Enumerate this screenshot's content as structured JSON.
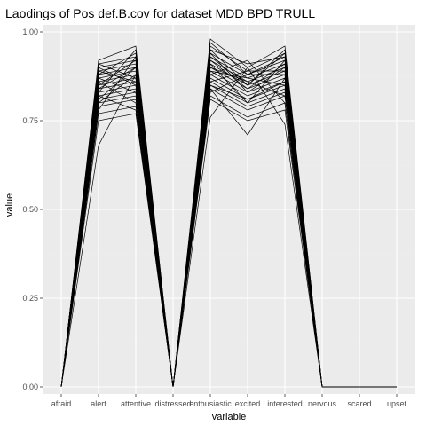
{
  "chart_data": {
    "type": "line",
    "title": "Laodings of Pos def.B.cov for dataset MDD BPD TRULL",
    "xlabel": "variable",
    "ylabel": "value",
    "categories": [
      "afraid",
      "alert",
      "attentive",
      "distressed",
      "enthusiastic",
      "excited",
      "interested",
      "nervous",
      "scared",
      "upset"
    ],
    "ylim": [
      -0.02,
      1.02
    ],
    "yticks": [
      0.0,
      0.25,
      0.5,
      0.75,
      1.0
    ],
    "ytick_labels": [
      "0.00",
      "0.25",
      "0.50",
      "0.75",
      "1.00"
    ],
    "grid": true,
    "legend": "none",
    "colors": {
      "panel": "#ebebeb",
      "grid": "#ffffff",
      "line": "#000000"
    },
    "series": [
      {
        "values": [
          0,
          0.92,
          0.96,
          0,
          0.98,
          0.9,
          0.96,
          0,
          0,
          0
        ]
      },
      {
        "values": [
          0,
          0.91,
          0.93,
          0,
          0.96,
          0.89,
          0.94,
          0,
          0,
          0
        ]
      },
      {
        "values": [
          0,
          0.9,
          0.92,
          0,
          0.95,
          0.91,
          0.93,
          0,
          0,
          0
        ]
      },
      {
        "values": [
          0,
          0.89,
          0.91,
          0,
          0.94,
          0.88,
          0.92,
          0,
          0,
          0
        ]
      },
      {
        "values": [
          0,
          0.88,
          0.9,
          0,
          0.93,
          0.87,
          0.91,
          0,
          0,
          0
        ]
      },
      {
        "values": [
          0,
          0.87,
          0.89,
          0,
          0.92,
          0.86,
          0.9,
          0,
          0,
          0
        ]
      },
      {
        "values": [
          0,
          0.86,
          0.88,
          0,
          0.91,
          0.85,
          0.89,
          0,
          0,
          0
        ]
      },
      {
        "values": [
          0,
          0.85,
          0.87,
          0,
          0.9,
          0.84,
          0.88,
          0,
          0,
          0
        ]
      },
      {
        "values": [
          0,
          0.84,
          0.86,
          0,
          0.89,
          0.83,
          0.87,
          0,
          0,
          0
        ]
      },
      {
        "values": [
          0,
          0.83,
          0.85,
          0,
          0.88,
          0.82,
          0.86,
          0,
          0,
          0
        ]
      },
      {
        "values": [
          0,
          0.82,
          0.84,
          0,
          0.87,
          0.81,
          0.85,
          0,
          0,
          0
        ]
      },
      {
        "values": [
          0,
          0.81,
          0.83,
          0,
          0.86,
          0.8,
          0.84,
          0,
          0,
          0
        ]
      },
      {
        "values": [
          0,
          0.8,
          0.82,
          0,
          0.85,
          0.79,
          0.83,
          0,
          0,
          0
        ]
      },
      {
        "values": [
          0,
          0.79,
          0.81,
          0,
          0.84,
          0.78,
          0.82,
          0,
          0,
          0
        ]
      },
      {
        "values": [
          0,
          0.77,
          0.79,
          0,
          0.82,
          0.76,
          0.8,
          0,
          0,
          0
        ]
      },
      {
        "values": [
          0,
          0.68,
          0.88,
          0,
          0.84,
          0.71,
          0.87,
          0,
          0,
          0
        ]
      },
      {
        "values": [
          0,
          0.75,
          0.77,
          0,
          0.81,
          0.75,
          0.78,
          0,
          0,
          0
        ]
      },
      {
        "values": [
          0,
          0.83,
          0.95,
          0,
          0.93,
          0.85,
          0.95,
          0,
          0,
          0
        ]
      },
      {
        "values": [
          0,
          0.9,
          0.85,
          0,
          0.76,
          0.9,
          0.74,
          0,
          0,
          0
        ]
      },
      {
        "values": [
          0,
          0.78,
          0.93,
          0,
          0.91,
          0.8,
          0.92,
          0,
          0,
          0
        ]
      },
      {
        "values": [
          0,
          0.91,
          0.87,
          0,
          0.88,
          0.92,
          0.8,
          0,
          0,
          0
        ]
      },
      {
        "values": [
          0,
          0.86,
          0.8,
          0,
          0.94,
          0.83,
          0.9,
          0,
          0,
          0
        ]
      },
      {
        "values": [
          0,
          0.84,
          0.9,
          0,
          0.86,
          0.89,
          0.89,
          0,
          0,
          0
        ]
      },
      {
        "values": [
          0,
          0.87,
          0.83,
          0,
          0.9,
          0.86,
          0.82,
          0,
          0,
          0
        ]
      },
      {
        "values": [
          0,
          0.8,
          0.88,
          0,
          0.92,
          0.84,
          0.91,
          0,
          0,
          0
        ]
      },
      {
        "values": [
          0,
          0.88,
          0.94,
          0,
          0.97,
          0.88,
          0.93,
          0,
          0,
          0
        ]
      },
      {
        "values": [
          0,
          0.82,
          0.78,
          0,
          0.85,
          0.81,
          0.86,
          0,
          0,
          0
        ]
      },
      {
        "values": [
          0,
          0.85,
          0.92,
          0,
          0.89,
          0.87,
          0.85,
          0,
          0,
          0
        ]
      },
      {
        "values": [
          0,
          0.89,
          0.86,
          0,
          0.83,
          0.88,
          0.88,
          0,
          0,
          0
        ]
      },
      {
        "values": [
          0,
          0.81,
          0.9,
          0,
          0.95,
          0.85,
          0.94,
          0,
          0,
          0
        ]
      }
    ]
  }
}
